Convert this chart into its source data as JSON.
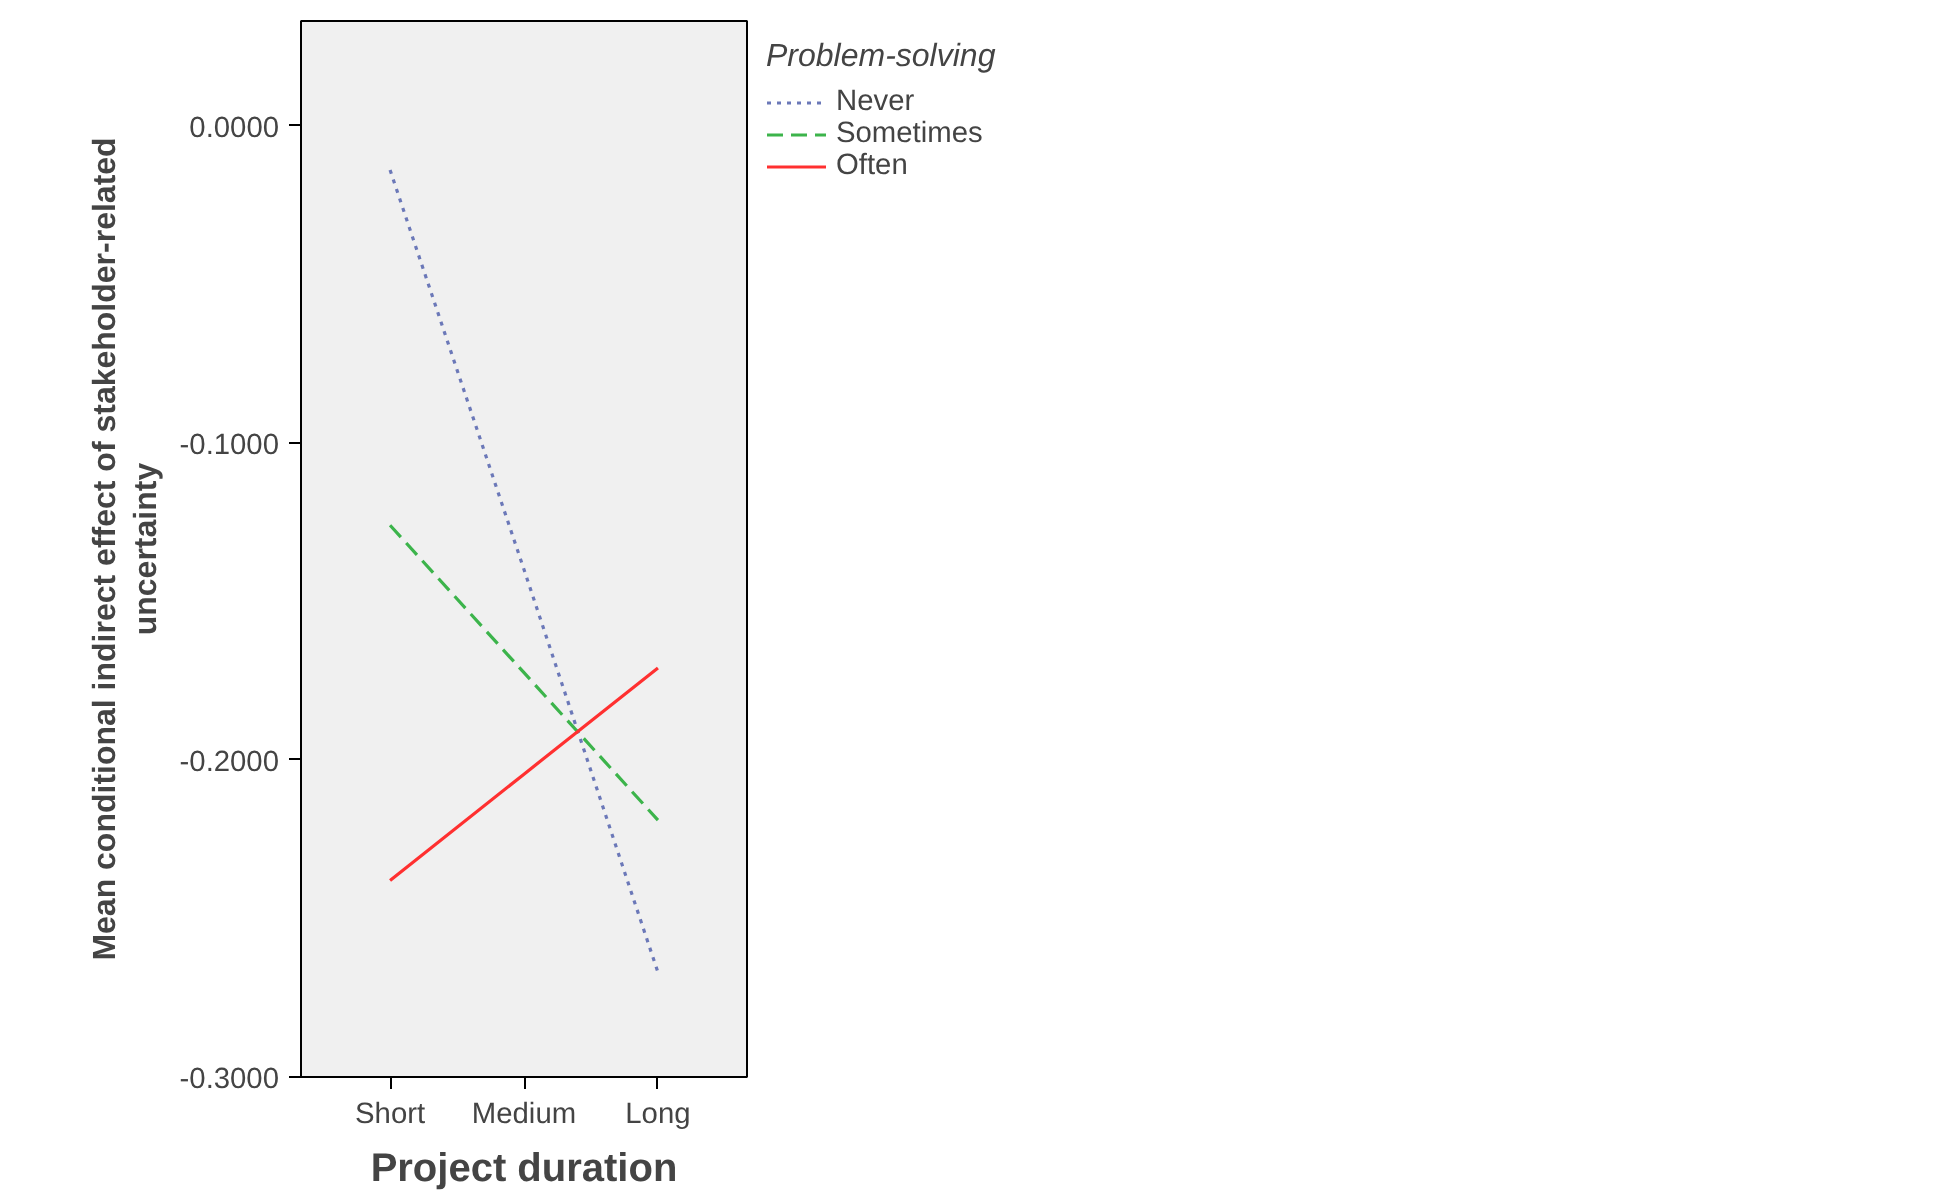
{
  "chart_data": {
    "type": "line",
    "xlabel": "Project duration",
    "ylabel": "Mean conditional indirect effect of stakeholder-related\nuncertainty",
    "legend_title": "Problem-solving",
    "categories": [
      "Short",
      "Medium",
      "Long"
    ],
    "series": [
      {
        "name": "Never",
        "color": "#6b78b8",
        "line_style": "dotted",
        "values": [
          -0.014,
          -0.14,
          -0.267
        ]
      },
      {
        "name": "Sometimes",
        "color": "#3cb44b",
        "line_style": "dashed",
        "values": [
          -0.126,
          -0.1725,
          -0.219
        ]
      },
      {
        "name": "Often",
        "color": "#ff3030",
        "line_style": "solid",
        "values": [
          -0.238,
          -0.2045,
          -0.171
        ]
      }
    ],
    "ylim": [
      -0.3,
      0.033
    ],
    "yticks": [
      {
        "value": -0.3,
        "label": "-0.3000"
      },
      {
        "value": -0.2,
        "label": "-0.2000"
      },
      {
        "value": -0.1,
        "label": "-0.1000"
      },
      {
        "value": 0,
        "label": "0.0000"
      }
    ],
    "grid": false,
    "legend": "top right",
    "marker": "none"
  }
}
